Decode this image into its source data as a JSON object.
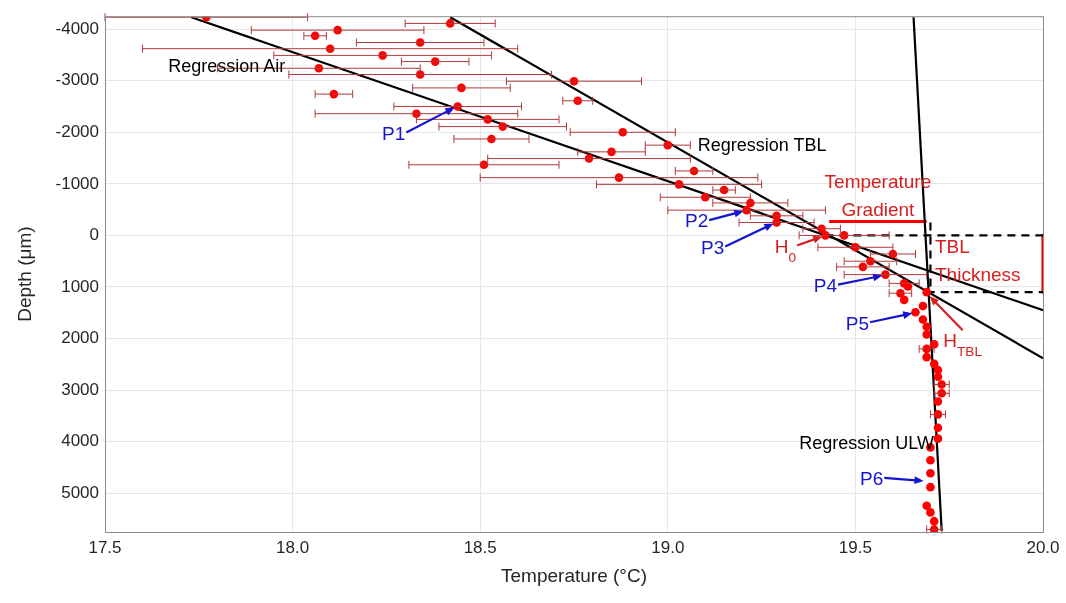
{
  "chart_data": {
    "type": "scatter",
    "xlabel": "Temperature (°C)",
    "ylabel": "Depth (μm)",
    "xlim": [
      17.5,
      20.0
    ],
    "xticks": [
      17.5,
      {
        "value": 18,
        "label": "18.0"
      },
      18.5,
      {
        "value": 19,
        "label": "19.0"
      },
      19.5,
      {
        "value": 20,
        "label": "20.0"
      }
    ],
    "ylim": [
      5750,
      -4250
    ],
    "yticks": [
      -4000,
      -3000,
      -2000,
      -1000,
      0,
      1000,
      2000,
      3000,
      4000,
      5000
    ],
    "grid": true,
    "legend": false,
    "marker": "circle",
    "series": [
      {
        "color": "#ff0000",
        "x": [
          17.77,
          18.42,
          18.12,
          18.06,
          18.34,
          18.1,
          18.24,
          18.38,
          18.07,
          18.34,
          18.75,
          18.45,
          18.11,
          18.76,
          18.44,
          18.33,
          18.52,
          18.56,
          18.88,
          18.53,
          19.0,
          18.85,
          18.79,
          18.51,
          19.07,
          18.87,
          19.03,
          19.15,
          19.1,
          19.22,
          19.21,
          19.29,
          19.29,
          19.41,
          19.42,
          19.47,
          19.5,
          19.6,
          19.54,
          19.52,
          19.58,
          19.63,
          19.64,
          19.69,
          19.62,
          19.63,
          19.68,
          19.66,
          19.68,
          19.69,
          19.69,
          19.71,
          19.69,
          19.69,
          19.71,
          19.72,
          19.72,
          19.73,
          19.73,
          19.72,
          19.72,
          19.72,
          19.72,
          19.7,
          19.7,
          19.7,
          19.7,
          19.69,
          19.7,
          19.71,
          19.71
        ],
        "values": [
          -4230,
          -4110,
          -3980,
          -3870,
          -3740,
          -3620,
          -3490,
          -3370,
          -3240,
          -3120,
          -2990,
          -2860,
          -2740,
          -2610,
          -2500,
          -2360,
          -2250,
          -2110,
          -2000,
          -1870,
          -1750,
          -1620,
          -1490,
          -1370,
          -1250,
          -1120,
          -990,
          -880,
          -740,
          -630,
          -490,
          -380,
          -250,
          -130,
          0,
          0,
          230,
          360,
          500,
          610,
          760,
          930,
          990,
          1100,
          1120,
          1250,
          1370,
          1490,
          1630,
          1770,
          1920,
          2110,
          2200,
          2360,
          2490,
          2610,
          2740,
          2890,
          3060,
          3220,
          3470,
          3730,
          3940,
          4110,
          4360,
          4610,
          4880,
          5240,
          5370,
          5540,
          5700
        ],
        "xerrors": [
          0.27,
          0.12,
          0.23,
          0.03,
          0.17,
          0.5,
          0.29,
          0.09,
          0.27,
          0.35,
          0.18,
          0.13,
          0.05,
          0.04,
          0.17,
          0.27,
          0.19,
          0.17,
          0.14,
          0.1,
          0.06,
          0.09,
          0.27,
          0.2,
          0.05,
          0.37,
          0.22,
          0.03,
          0.12,
          0.1,
          0.21,
          0.07,
          0.1,
          0.05,
          null,
          0.12,
          0.1,
          0.06,
          0.07,
          0.07,
          0.11,
          0.04,
          null,
          null,
          0.03,
          null,
          null,
          null,
          null,
          null,
          null,
          null,
          0.02,
          null,
          null,
          null,
          null,
          0.02,
          0.02,
          null,
          0.02,
          null,
          null,
          null,
          null,
          null,
          null,
          null,
          null,
          null,
          0.02
        ]
      },
      {
        "type": "line",
        "marker": "none",
        "name": "Regression Air",
        "color": "#000000",
        "x": [
          17.73,
          20.0
        ],
        "values": [
          -4230,
          1450
        ]
      },
      {
        "type": "line",
        "marker": "none",
        "name": "Regression TBL",
        "color": "#000000",
        "x": [
          18.42,
          20.0
        ],
        "values": [
          -4230,
          2380
        ]
      },
      {
        "type": "line",
        "marker": "none",
        "name": "Regression ULW",
        "color": "#000000",
        "x": [
          19.655,
          19.73
        ],
        "values": [
          -4230,
          5730
        ]
      },
      {
        "type": "line",
        "marker": "none",
        "color": "#000000",
        "line_style": "dashed",
        "x": [
          19.42,
          20.0
        ],
        "values": [
          0,
          0
        ]
      },
      {
        "type": "line",
        "marker": "none",
        "color": "#000000",
        "line_style": "dashed",
        "x": [
          19.69,
          20.0
        ],
        "values": [
          1100,
          1100
        ]
      },
      {
        "type": "line",
        "marker": "none",
        "color": "#000000",
        "line_style": "dashed",
        "x": [
          19.7,
          19.7
        ],
        "values": [
          -250,
          1100
        ]
      },
      {
        "type": "line",
        "marker": "none",
        "color": "#ff0000",
        "x": [
          19.43,
          19.69
        ],
        "values": [
          -270,
          -270
        ]
      },
      {
        "type": "line",
        "marker": "none",
        "color": "#ff0000",
        "x": [
          20.0,
          20.0
        ],
        "values": [
          0,
          1100
        ]
      }
    ],
    "annotations": [
      {
        "text": "P1",
        "x": 18.44,
        "y": -2500
      },
      {
        "text": "P2",
        "x": 19.21,
        "y": -490
      },
      {
        "text": "P3",
        "x": 19.29,
        "y": -250
      },
      {
        "text": "H$_{0}$",
        "x": 19.42,
        "y": 0
      },
      {
        "text": "P4",
        "x": 19.58,
        "y": 760
      },
      {
        "text": "P5",
        "x": 19.66,
        "y": 1490
      },
      {
        "text": "H$_{TBL}$",
        "x": 19.69,
        "y": 1100
      },
      {
        "text": "P6",
        "x": 19.69,
        "y": 4740
      },
      {
        "text": "Temperature Gradient",
        "x": 19.56,
        "y": -270
      },
      {
        "text": "TBL Thickness",
        "x": 20.0,
        "y": 550
      }
    ]
  }
}
